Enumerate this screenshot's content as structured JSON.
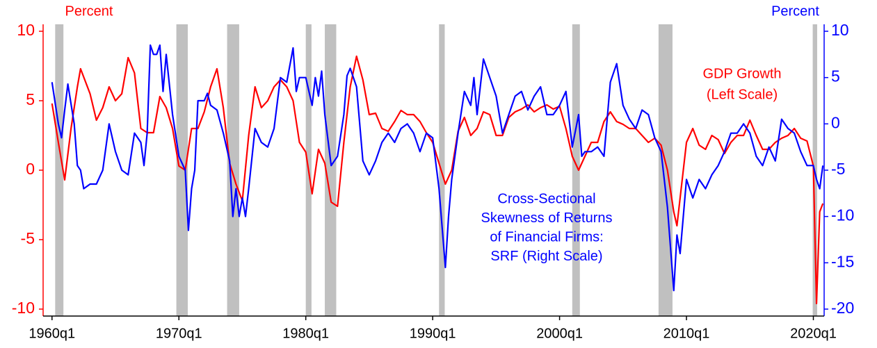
{
  "chart_data": {
    "type": "line",
    "x_label_left": "Percent",
    "x_label_right": "Percent",
    "annotations": [
      {
        "lines": [
          "GDP Growth",
          "(Left Scale)"
        ],
        "color": "#ff0000"
      },
      {
        "lines": [
          "Cross-Sectional",
          "Skewness of Returns",
          "of Financial Firms:",
          "SRF (Right Scale)"
        ],
        "color": "#0000ff"
      }
    ],
    "xlim": [
      1959.3,
      2020.85
    ],
    "xticks": [
      {
        "value": 1960,
        "label": "1960q1"
      },
      {
        "value": 1970,
        "label": "1970q1"
      },
      {
        "value": 1980,
        "label": "1980q1"
      },
      {
        "value": 1990,
        "label": "1990q1"
      },
      {
        "value": 2000,
        "label": "2000q1"
      },
      {
        "value": 2010,
        "label": "2010q1"
      },
      {
        "value": 2020,
        "label": "2020q1"
      }
    ],
    "ylim": [
      -10.5,
      10.5
    ],
    "yticks": [
      -10,
      -5,
      0,
      5,
      10
    ],
    "ycolor": "#ff0000",
    "y2lim": [
      -20.75,
      10.75
    ],
    "y2ticks": [
      -20,
      -15,
      -10,
      -5,
      0,
      5,
      10
    ],
    "y2color": "#0000ff",
    "recessions": [
      [
        1960.25,
        1960.9
      ],
      [
        1969.8,
        1970.7
      ],
      [
        1973.8,
        1974.75
      ],
      [
        1980.0,
        1980.45
      ],
      [
        1981.5,
        1982.4
      ],
      [
        1990.5,
        1990.95
      ],
      [
        2001.0,
        2001.6
      ],
      [
        2007.8,
        2008.9
      ],
      [
        2019.95,
        2020.3
      ]
    ],
    "recession_color": "#c0c0c0",
    "series": [
      {
        "name": "GDP Growth",
        "color": "#ff0000",
        "x": [
          1960.0,
          1960.5,
          1961.0,
          1961.5,
          1962.0,
          1962.25,
          1963.0,
          1963.5,
          1964.0,
          1964.5,
          1965.0,
          1965.5,
          1966.0,
          1966.5,
          1967.0,
          1967.5,
          1968.0,
          1968.5,
          1969.0,
          1969.5,
          1970.0,
          1970.5,
          1971.0,
          1971.5,
          1972.0,
          1972.5,
          1973.0,
          1973.5,
          1974.0,
          1974.5,
          1975.0,
          1975.5,
          1976.0,
          1976.5,
          1977.0,
          1977.5,
          1978.0,
          1978.5,
          1979.0,
          1979.5,
          1980.0,
          1980.5,
          1981.0,
          1981.5,
          1982.0,
          1982.5,
          1983.0,
          1983.5,
          1984.0,
          1984.5,
          1985.0,
          1985.5,
          1986.0,
          1986.5,
          1987.0,
          1987.5,
          1988.0,
          1988.5,
          1989.0,
          1989.5,
          1990.0,
          1990.5,
          1991.0,
          1991.5,
          1992.0,
          1992.5,
          1993.0,
          1993.5,
          1994.0,
          1994.5,
          1995.0,
          1995.5,
          1996.0,
          1996.5,
          1997.0,
          1997.5,
          1998.0,
          1998.5,
          1999.0,
          1999.5,
          2000.0,
          2000.5,
          2001.0,
          2001.5,
          2002.0,
          2002.5,
          2003.0,
          2003.5,
          2004.0,
          2004.5,
          2005.0,
          2005.5,
          2006.0,
          2006.5,
          2007.0,
          2007.5,
          2008.0,
          2008.5,
          2009.0,
          2009.25,
          2009.75,
          2010.0,
          2010.5,
          2011.0,
          2011.5,
          2012.0,
          2012.5,
          2013.0,
          2013.5,
          2014.0,
          2014.5,
          2015.0,
          2015.5,
          2016.0,
          2016.5,
          2017.0,
          2017.5,
          2018.0,
          2018.5,
          2019.0,
          2019.5,
          2020.0,
          2020.25,
          2020.5,
          2020.75
        ],
        "values": [
          4.8,
          2.0,
          -0.7,
          3.0,
          6.0,
          7.3,
          5.5,
          3.6,
          4.5,
          6.0,
          5.0,
          5.5,
          8.1,
          7.0,
          3.0,
          2.7,
          2.7,
          5.3,
          4.5,
          3.0,
          0.3,
          0.0,
          3.0,
          3.0,
          4.2,
          6.0,
          7.3,
          4.5,
          0.5,
          -1.0,
          -2.2,
          2.5,
          6.0,
          4.5,
          5.0,
          6.0,
          6.5,
          6.0,
          5.0,
          2.0,
          1.3,
          -1.7,
          1.5,
          0.5,
          -2.3,
          -2.6,
          2.0,
          6.0,
          8.2,
          6.5,
          4.0,
          4.1,
          3.0,
          2.8,
          3.5,
          4.3,
          4.0,
          4.0,
          3.5,
          2.7,
          2.0,
          0.5,
          -1.0,
          0.0,
          2.8,
          3.8,
          2.5,
          3.0,
          4.2,
          4.0,
          2.5,
          2.5,
          3.8,
          4.2,
          4.4,
          4.7,
          4.2,
          4.5,
          4.7,
          4.4,
          4.6,
          3.0,
          1.0,
          0.0,
          1.0,
          2.0,
          2.0,
          3.5,
          4.2,
          3.5,
          3.3,
          3.0,
          3.0,
          2.5,
          2.0,
          2.3,
          1.8,
          0.0,
          -3.0,
          -4.0,
          0.0,
          2.0,
          3.0,
          1.8,
          1.5,
          2.5,
          2.2,
          1.2,
          2.0,
          2.5,
          2.5,
          3.6,
          2.5,
          1.5,
          1.5,
          2.0,
          2.3,
          2.5,
          3.0,
          2.3,
          2.1,
          0.3,
          -9.6,
          -3.0,
          -2.4
        ]
      },
      {
        "name": "SRF",
        "color": "#0000ff",
        "axis": "y2",
        "x": [
          1960.0,
          1960.5,
          1960.75,
          1961.0,
          1961.25,
          1961.75,
          1962.0,
          1962.25,
          1962.5,
          1963.0,
          1963.5,
          1964.0,
          1964.5,
          1965.0,
          1965.5,
          1966.0,
          1966.5,
          1967.0,
          1967.25,
          1967.5,
          1967.75,
          1968.0,
          1968.25,
          1968.5,
          1968.75,
          1969.0,
          1969.5,
          1970.0,
          1970.5,
          1970.75,
          1971.0,
          1971.25,
          1971.5,
          1972.0,
          1972.25,
          1972.5,
          1973.0,
          1973.5,
          1974.0,
          1974.25,
          1974.5,
          1974.75,
          1975.0,
          1975.25,
          1975.5,
          1976.0,
          1976.5,
          1977.0,
          1977.5,
          1978.0,
          1978.5,
          1979.0,
          1979.25,
          1979.5,
          1980.0,
          1980.5,
          1980.75,
          1981.0,
          1981.25,
          1981.5,
          1982.0,
          1982.5,
          1983.0,
          1983.25,
          1983.5,
          1984.0,
          1984.5,
          1985.0,
          1985.5,
          1986.0,
          1986.5,
          1987.0,
          1987.5,
          1988.0,
          1988.5,
          1989.0,
          1989.5,
          1990.0,
          1990.5,
          1991.0,
          1991.25,
          1991.5,
          1992.0,
          1992.5,
          1993.0,
          1993.25,
          1993.5,
          1994.0,
          1994.5,
          1995.0,
          1995.5,
          1996.0,
          1996.5,
          1997.0,
          1997.5,
          1998.0,
          1998.5,
          1999.0,
          1999.5,
          2000.0,
          2000.5,
          2001.0,
          2001.5,
          2001.75,
          2002.0,
          2002.5,
          2003.0,
          2003.5,
          2004.0,
          2004.5,
          2005.0,
          2005.5,
          2006.0,
          2006.5,
          2007.0,
          2007.5,
          2008.0,
          2008.5,
          2009.0,
          2009.25,
          2009.5,
          2010.0,
          2010.5,
          2011.0,
          2011.5,
          2012.0,
          2012.5,
          2013.0,
          2013.5,
          2014.0,
          2014.5,
          2015.0,
          2015.5,
          2016.0,
          2016.5,
          2017.0,
          2017.5,
          2018.0,
          2018.5,
          2019.0,
          2019.5,
          2020.0,
          2020.25,
          2020.5,
          2020.75
        ],
        "values": [
          4.5,
          0,
          -1.5,
          1.5,
          4.3,
          0,
          -4.5,
          -5,
          -7,
          -6.5,
          -6.5,
          -5,
          0,
          -3,
          -5,
          -5.5,
          -1,
          -2,
          -4.5,
          -1,
          8.5,
          7.5,
          7.5,
          8.5,
          3.5,
          7.5,
          1,
          -3.5,
          -5,
          -11.5,
          -7,
          -5,
          2.5,
          2.5,
          3.3,
          2,
          1.5,
          -1,
          -4,
          -10,
          -7,
          -10,
          -8,
          -10,
          -7,
          -0.5,
          -2,
          -2.5,
          -0.5,
          5,
          4.5,
          8.2,
          3.5,
          5,
          5,
          2,
          5,
          3,
          5.7,
          1,
          -4.5,
          -3.5,
          1,
          5.2,
          6,
          4,
          -4,
          -5.5,
          -4,
          -2,
          -1,
          -2,
          -0.5,
          0,
          -1,
          -3,
          -1,
          -1.5,
          -7,
          -15.5,
          -10,
          -6,
          -1,
          3.5,
          2,
          5,
          1,
          7,
          5,
          3,
          -1,
          1,
          3,
          3.5,
          1.5,
          3,
          4,
          1,
          1,
          2,
          3.5,
          -2.5,
          1,
          -3.5,
          -3,
          -3,
          -2.5,
          -3.5,
          4.5,
          6.5,
          2,
          0.5,
          -0.5,
          1.5,
          1,
          -1.5,
          -3,
          -9,
          -18,
          -12,
          -14,
          -6,
          -8,
          -6,
          -7,
          -5.5,
          -4.5,
          -3,
          -1,
          -1,
          0,
          -1,
          -3.5,
          -4.5,
          -2.5,
          -4,
          0.5,
          -0.5,
          -1,
          -3,
          -4.5,
          -4.5,
          -6,
          -7,
          -4.5
        ]
      }
    ]
  }
}
